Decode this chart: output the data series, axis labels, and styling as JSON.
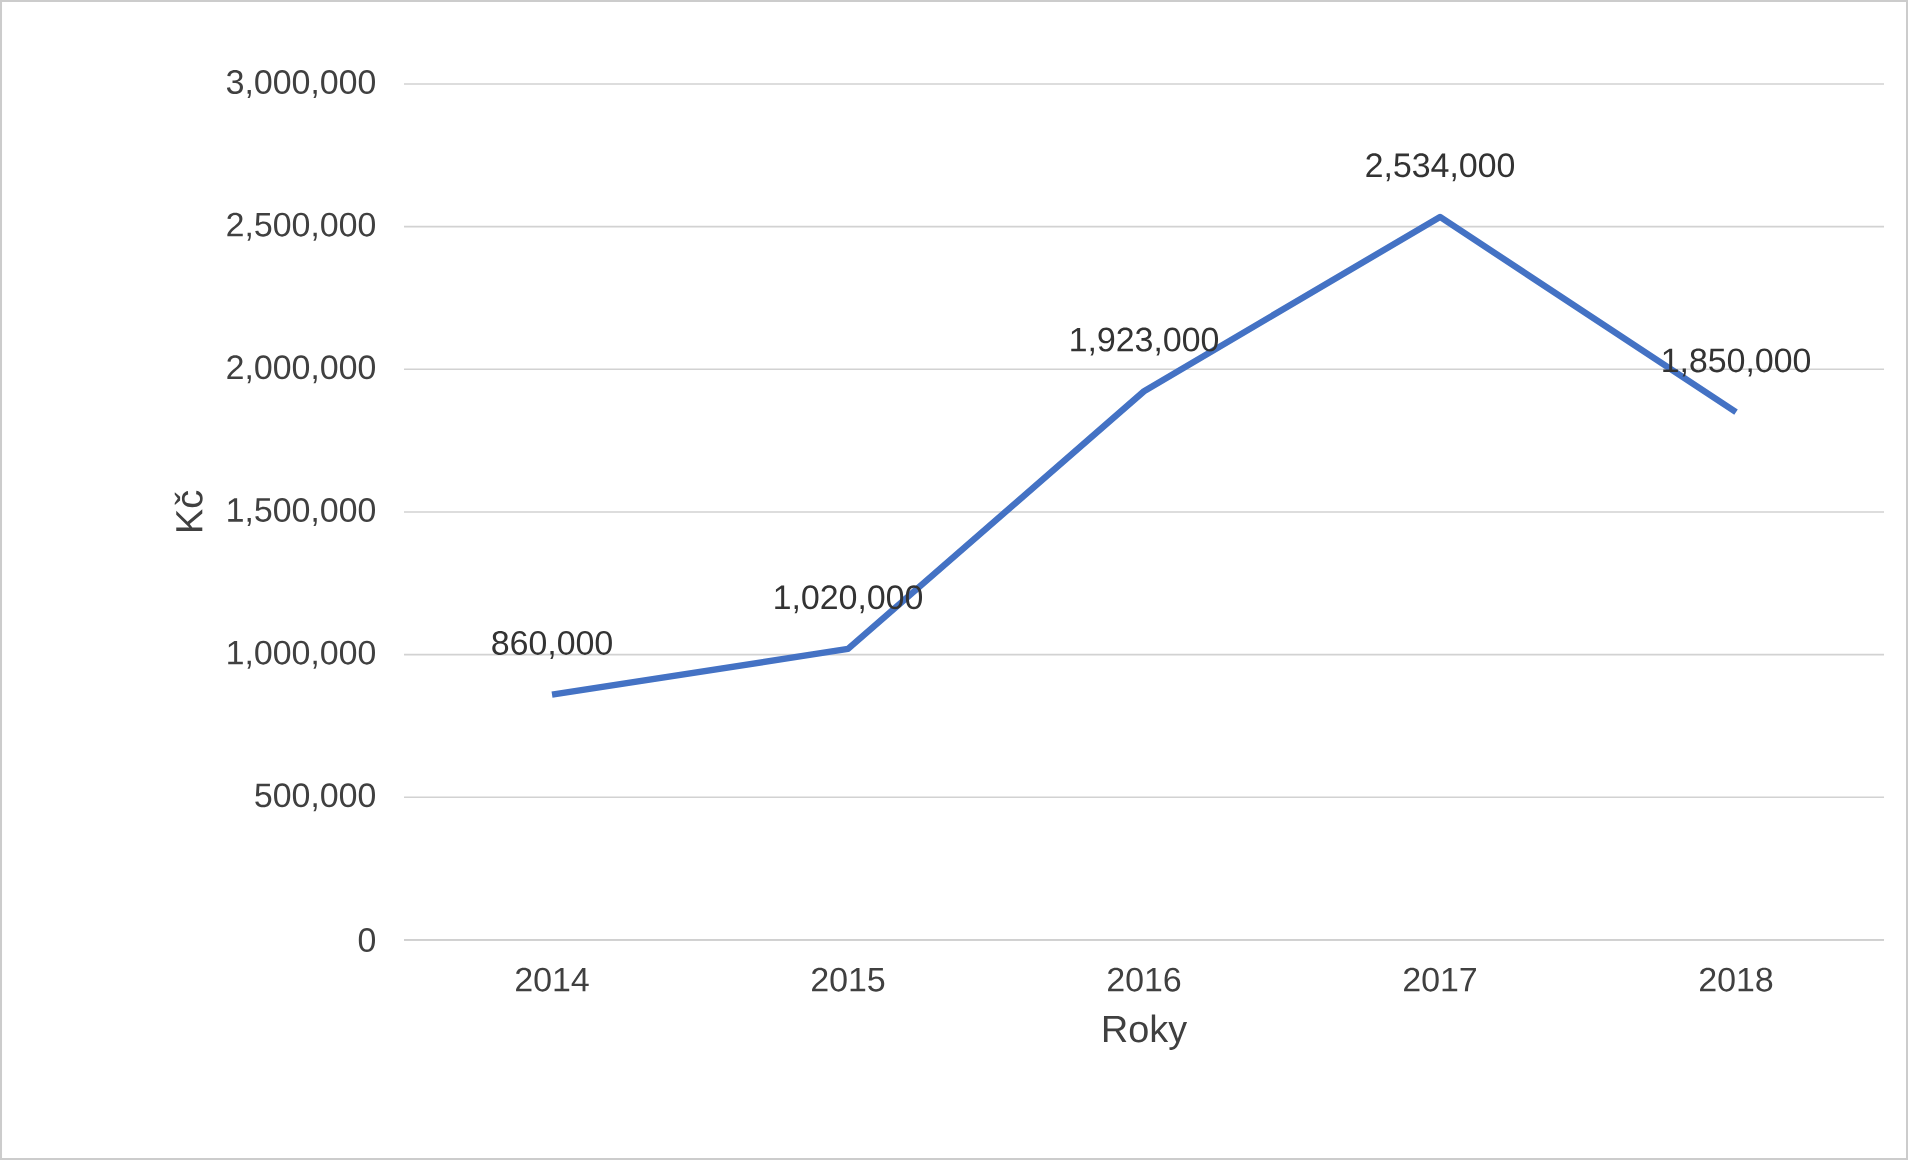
{
  "chart_data": {
    "type": "line",
    "xlabel": "Roky",
    "ylabel": "Kč",
    "categories": [
      "2014",
      "2015",
      "2016",
      "2017",
      "2018"
    ],
    "values": [
      860000,
      1020000,
      1923000,
      2534000,
      1850000
    ],
    "color": "#4472c4",
    "ylim": [
      0,
      3000000
    ],
    "yticks": [
      0,
      {
        "value": 500000,
        "label": "500,000"
      },
      {
        "value": 1000000,
        "label": "1,000,000"
      },
      {
        "value": 1500000,
        "label": "1,500,000"
      },
      {
        "value": 2000000,
        "label": "2,000,000"
      },
      {
        "value": 2500000,
        "label": "2,500,000"
      },
      {
        "value": 3000000,
        "label": "3,000,000"
      }
    ],
    "value_labels": [
      "860,000",
      "1,020,000",
      "1,923,000",
      "2,534,000",
      "1,850,000"
    ],
    "grid": "y",
    "marker": "none",
    "line_style": "solid"
  }
}
